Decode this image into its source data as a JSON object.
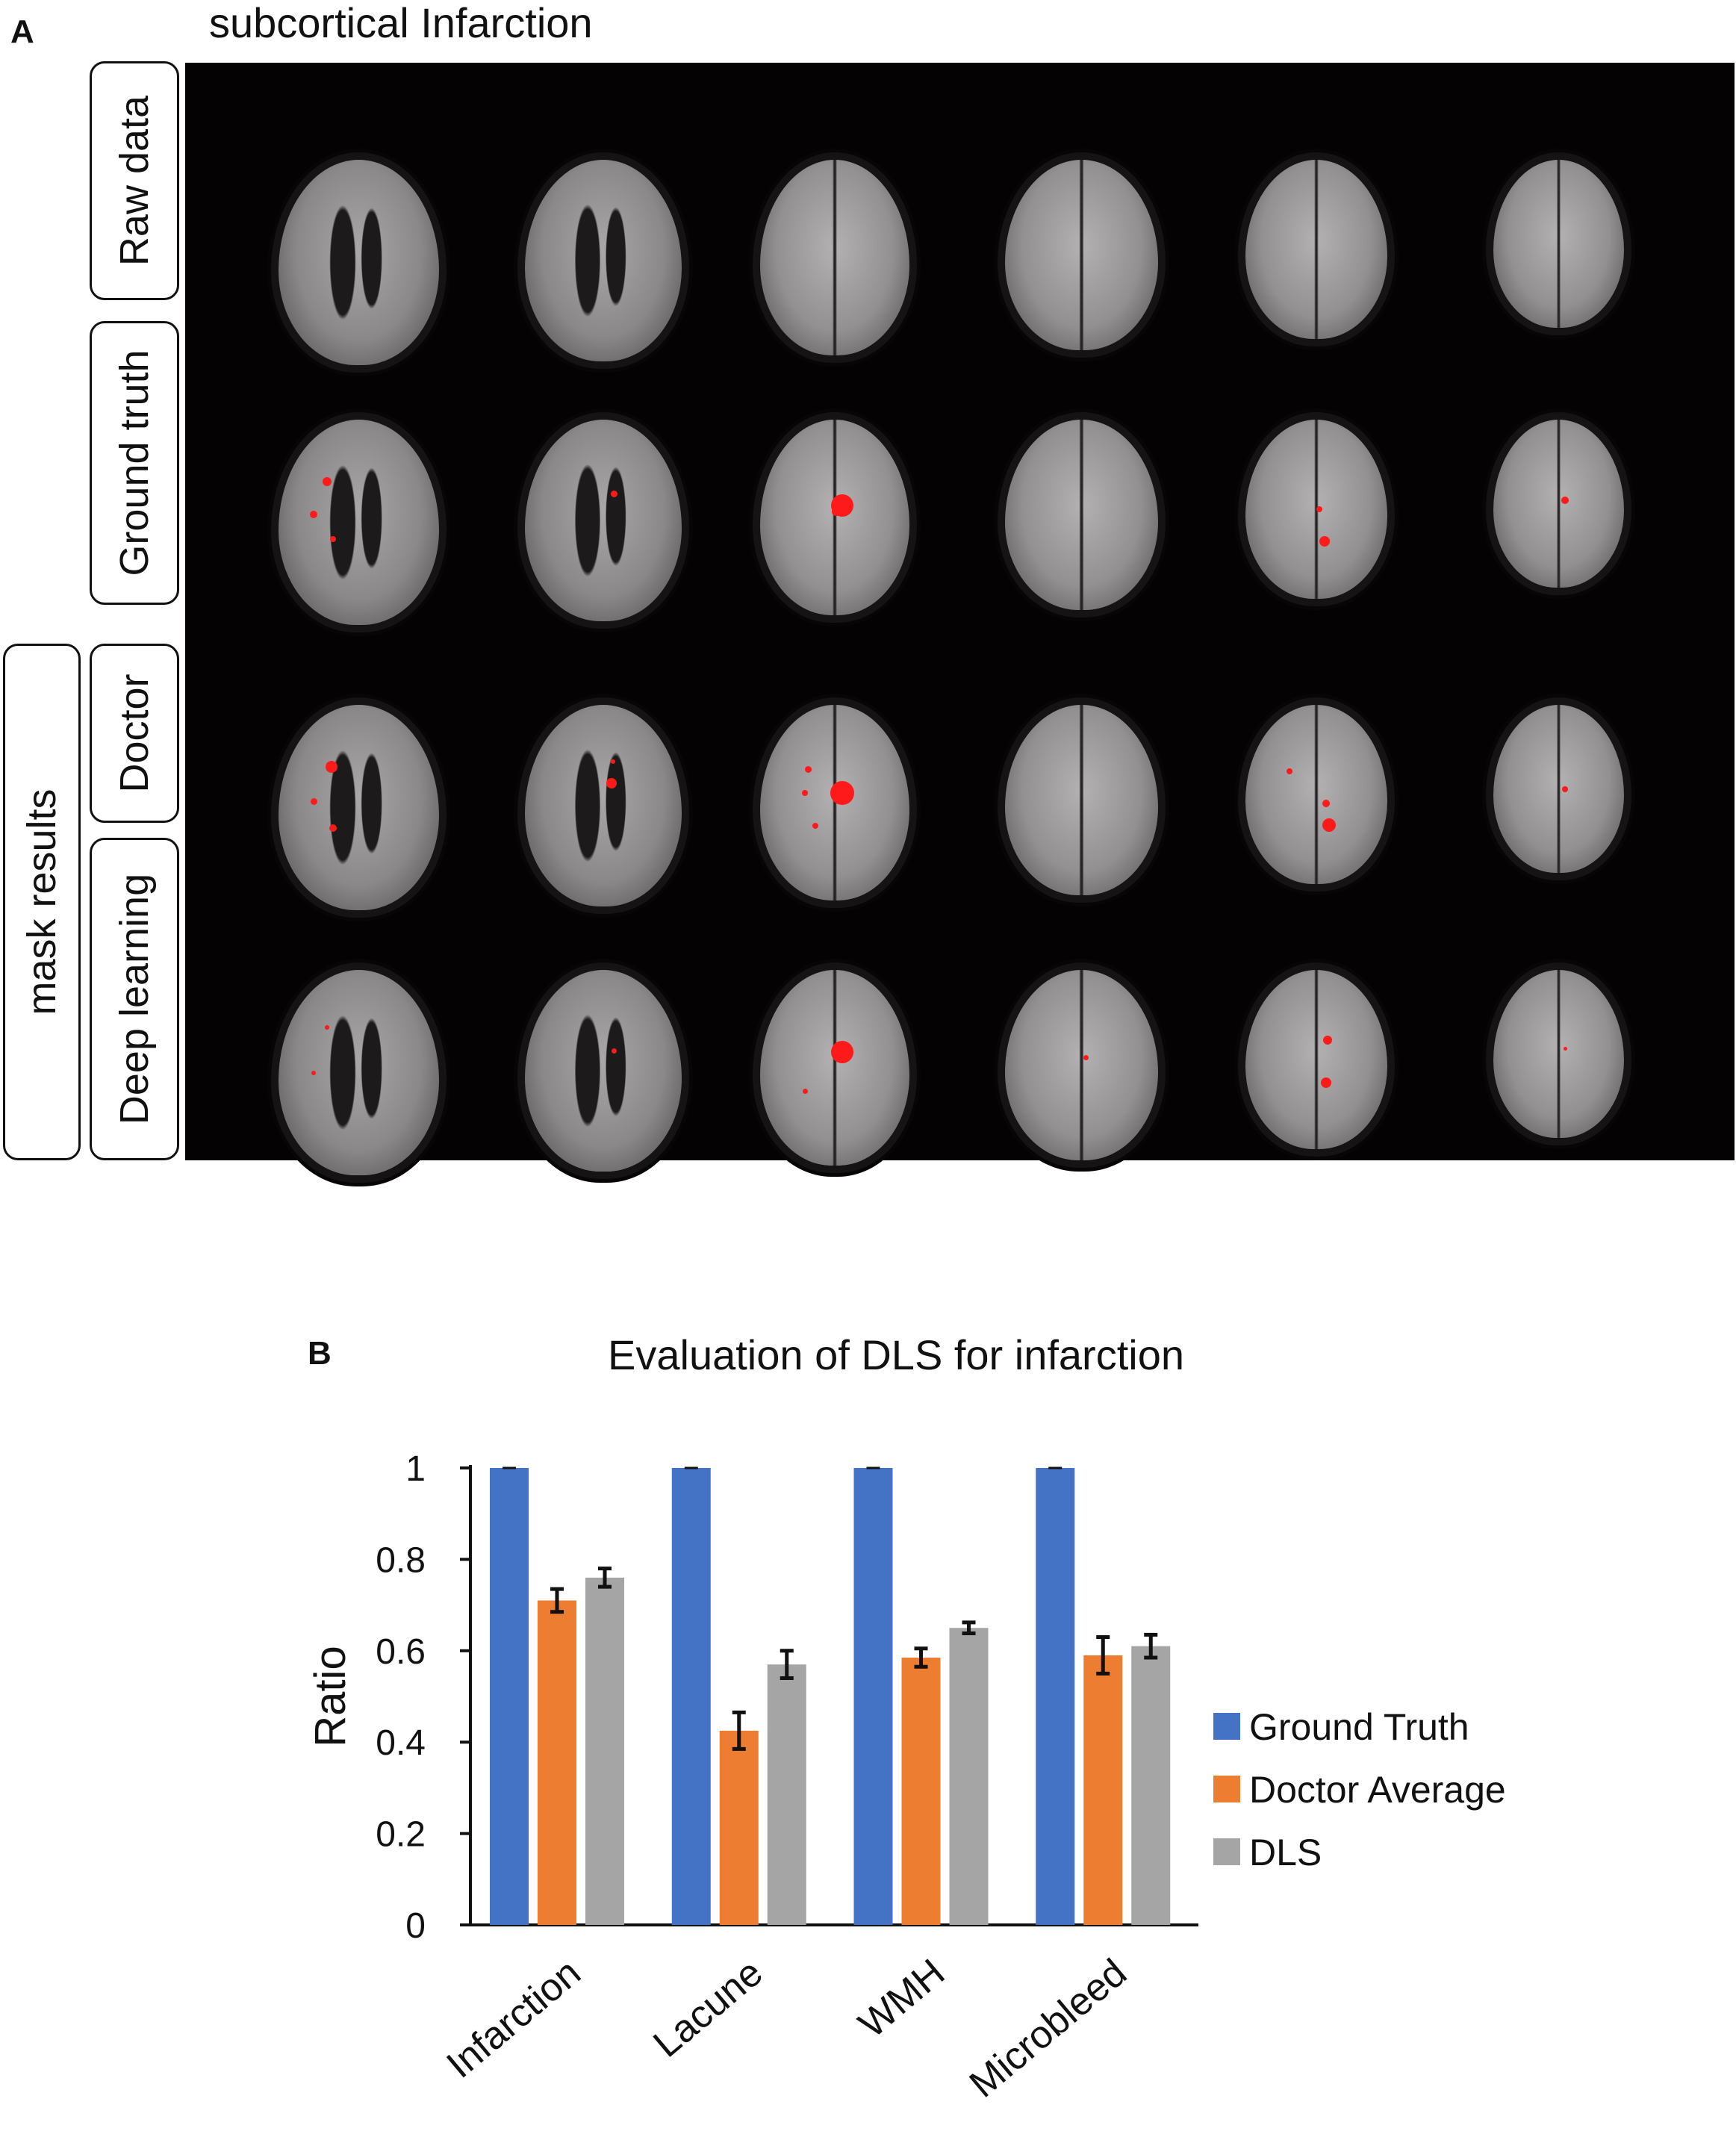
{
  "panel_a": {
    "letter": "A",
    "title": "subcortical Infarction",
    "group_label": "mask results",
    "row_labels": [
      "Raw data",
      "Ground truth",
      "Doctor",
      "Deep learning"
    ]
  },
  "panel_b": {
    "letter": "B"
  },
  "chart_data": {
    "type": "bar",
    "title": "Evaluation of DLS for infarction",
    "xlabel": "",
    "ylabel": "Ratio",
    "ylim": [
      0,
      1
    ],
    "yticks": [
      "0",
      "0.2",
      "0.4",
      "0.6",
      "0.8",
      "1"
    ],
    "categories": [
      "Infarction",
      "Lacune",
      "WMH",
      "Microbleed"
    ],
    "series": [
      {
        "name": "Ground Truth",
        "color": "#4472c4",
        "values": [
          1.0,
          1.0,
          1.0,
          1.0
        ],
        "errors": [
          0.0,
          0.0,
          0.0,
          0.0
        ]
      },
      {
        "name": "Doctor Average",
        "color": "#ed7d31",
        "values": [
          0.71,
          0.425,
          0.585,
          0.59
        ],
        "errors": [
          0.025,
          0.04,
          0.02,
          0.04
        ]
      },
      {
        "name": "DLS",
        "color": "#a5a5a5",
        "values": [
          0.76,
          0.57,
          0.65,
          0.61
        ],
        "errors": [
          0.02,
          0.03,
          0.012,
          0.025
        ]
      }
    ],
    "legend_position": "right"
  }
}
